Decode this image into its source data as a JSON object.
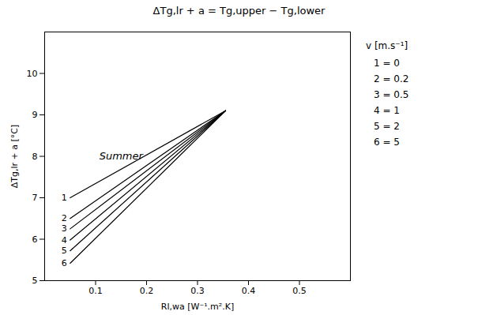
{
  "chart_data": {
    "type": "line",
    "title": "ΔTg,lr + a = Tg,upper − Tg,lower",
    "x_label": "Rl,wa [W⁻¹.m².K]",
    "y_label": "ΔTg,lr + a [°C]",
    "x": [
      0.05,
      0.355
    ],
    "series": [
      {
        "name": "1",
        "color": "#000000",
        "values": [
          7.0,
          9.1
        ]
      },
      {
        "name": "2",
        "color": "#000000",
        "values": [
          6.5,
          9.1
        ]
      },
      {
        "name": "3",
        "color": "#000000",
        "values": [
          6.25,
          9.1
        ]
      },
      {
        "name": "4",
        "color": "#000000",
        "values": [
          5.98,
          9.1
        ]
      },
      {
        "name": "5",
        "color": "#000000",
        "values": [
          5.72,
          9.1
        ]
      },
      {
        "name": "6",
        "color": "#000000",
        "values": [
          5.42,
          9.1
        ]
      }
    ],
    "xlim": [
      0.0,
      0.6
    ],
    "xticks": [
      0.1,
      0.2,
      0.3,
      0.4,
      0.5
    ],
    "ylim": [
      5.0,
      11.0
    ],
    "yticks": [
      5,
      6,
      7,
      8,
      9,
      10
    ],
    "grid": false,
    "annotations": [
      {
        "text": "Summer",
        "x": 0.15,
        "y": 8.0
      },
      {
        "text": "v [m.s⁻¹]"
      },
      {
        "text": "1 = 0"
      },
      {
        "text": "2 = 0.2"
      },
      {
        "text": "3 = 0.5"
      },
      {
        "text": "4 = 1"
      },
      {
        "text": "5 = 2"
      },
      {
        "text": "6 = 5"
      }
    ]
  }
}
